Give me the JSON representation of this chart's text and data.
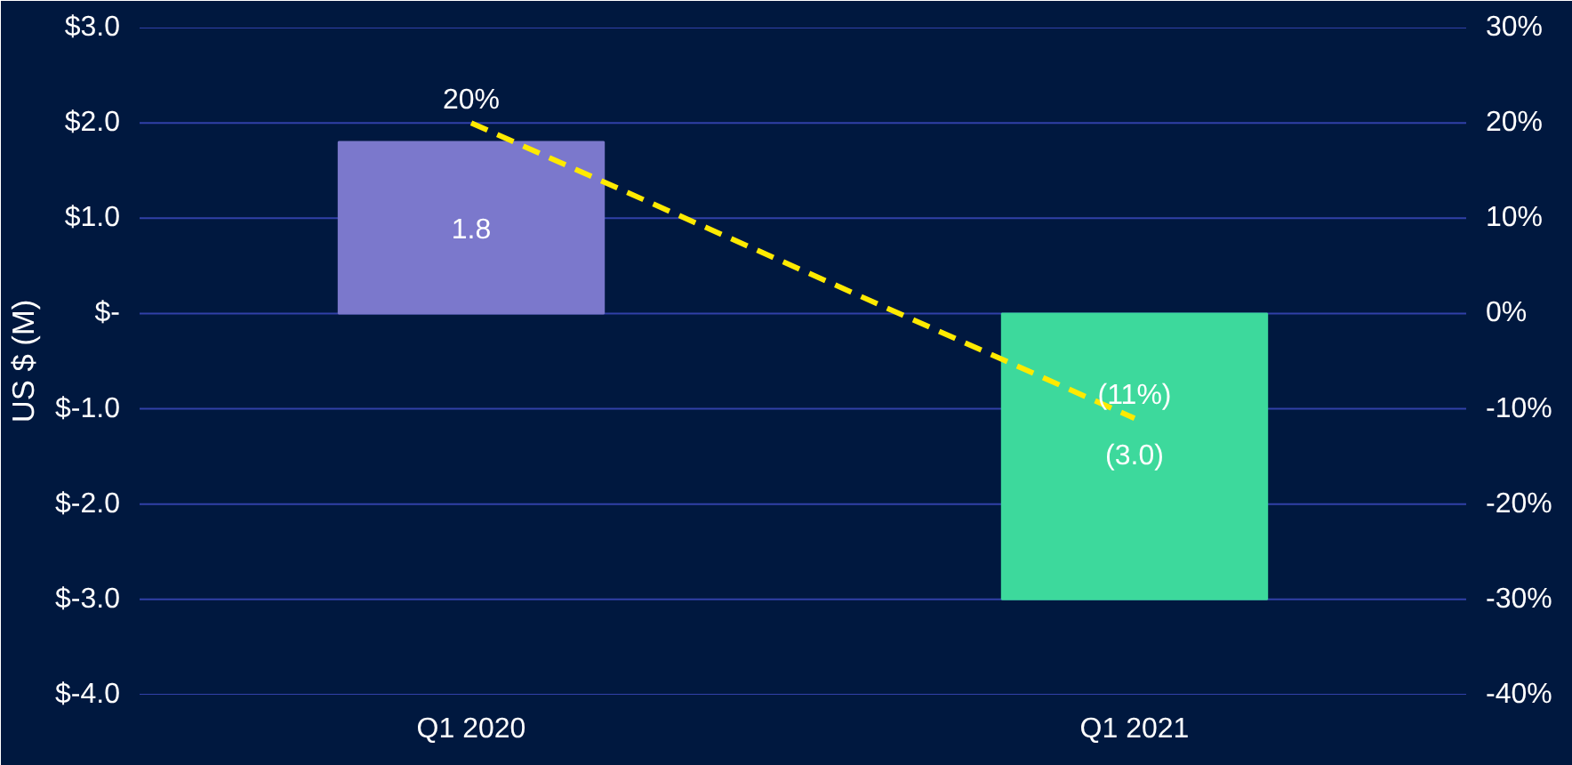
{
  "chart_data": {
    "type": "bar",
    "ylabel": "US $ (M)",
    "categories": [
      "Q1 2020",
      "Q1 2021"
    ],
    "series": [
      {
        "colors": [
          "#7b78cc",
          "#3dd99c"
        ],
        "values": [
          1.8,
          -3.0
        ],
        "value_labels": [
          "1.8",
          "(3.0)"
        ]
      },
      {
        "type": "line",
        "axis": "y2",
        "color": "#ffea00",
        "line_style": "dashed",
        "values": [
          20,
          -11
        ],
        "value_labels": [
          "20%",
          "(11%)"
        ]
      }
    ],
    "ylim": [
      -4,
      3
    ],
    "yticks": [
      {
        "value": -4,
        "label": "$-4.0"
      },
      {
        "value": -3,
        "label": "$-3.0"
      },
      {
        "value": -2,
        "label": "$-2.0"
      },
      {
        "value": -1,
        "label": "$-1.0"
      },
      {
        "value": 0,
        "label": "$-"
      },
      {
        "value": 1,
        "label": "$1.0"
      },
      {
        "value": 2,
        "label": "$2.0"
      },
      {
        "value": 3,
        "label": "$3.0"
      }
    ],
    "y2lim": [
      -40,
      30
    ],
    "y2ticks": [
      {
        "value": -40,
        "label": "-40%"
      },
      {
        "value": -30,
        "label": "-30%"
      },
      {
        "value": -20,
        "label": "-20%"
      },
      {
        "value": -10,
        "label": "-10%"
      },
      {
        "value": 0,
        "label": "0%"
      },
      {
        "value": 10,
        "label": "10%"
      },
      {
        "value": 20,
        "label": "20%"
      },
      {
        "value": 30,
        "label": "30%"
      }
    ],
    "grid": "y"
  }
}
